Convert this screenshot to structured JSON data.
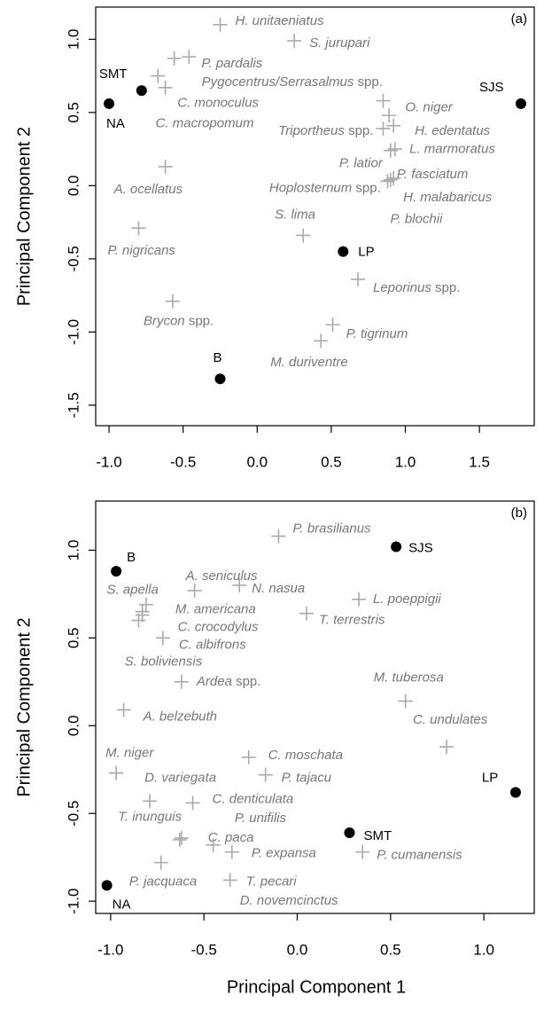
{
  "chart_data": [
    {
      "type": "scatter",
      "panel_label": "(a)",
      "y_label": "Principal Component 2",
      "xlim": [
        -1.09,
        1.87
      ],
      "ylim": [
        -1.64,
        1.22
      ],
      "xticks": [
        {
          "value": -1,
          "label": "-1.0"
        },
        -0.5,
        {
          "value": 0,
          "label": "0.0"
        },
        0.5,
        {
          "value": 1,
          "label": "1.0"
        },
        1.5
      ],
      "yticks": [
        -1.5,
        {
          "value": -1,
          "label": "-1.0"
        },
        -0.5,
        {
          "value": 0,
          "label": "0.0"
        },
        0.5,
        {
          "value": 1,
          "label": "1.0"
        }
      ],
      "series": [
        {
          "color": "#000000",
          "marker": "circle",
          "labels": [
            "SMT",
            "NA",
            "SJS",
            "LP",
            "B"
          ],
          "x": [
            -0.78,
            -1.0,
            1.78,
            0.58,
            -0.25
          ],
          "values": [
            0.65,
            0.56,
            0.56,
            -0.45,
            -1.32
          ]
        },
        {
          "color": "#aaaaaa",
          "marker": "cross",
          "labels": [
            "H. unitaeniatus",
            "S. jurupari",
            "P. pardalis",
            "Pygocentrus/Serrasalmus spp.",
            "C. monoculus",
            "C. macropomum",
            "O. niger",
            "H. edentatus",
            "Triportheus spp.",
            "L. marmoratus",
            "P. latior",
            "P. fasciatum",
            "Hoplosternum spp.",
            "H. malabaricus",
            "P. blochii",
            "A. ocellatus",
            "P. nigricans",
            "S. lima",
            "Leporinus spp.",
            "Brycon spp.",
            "P. tigrinum",
            "M. duriventre"
          ],
          "x": [
            -0.25,
            0.25,
            -0.46,
            -0.56,
            -0.67,
            -0.62,
            0.85,
            0.89,
            0.85,
            0.92,
            0.9,
            0.93,
            0.9,
            0.92,
            0.88,
            -0.62,
            -0.8,
            0.31,
            0.68,
            -0.57,
            0.51,
            0.43
          ],
          "values": [
            1.1,
            0.99,
            0.88,
            0.87,
            0.75,
            0.67,
            0.58,
            0.48,
            0.39,
            0.41,
            0.24,
            0.25,
            0.04,
            0.05,
            0.03,
            0.13,
            -0.29,
            -0.34,
            -0.64,
            -0.79,
            -0.95,
            -1.06
          ]
        }
      ]
    },
    {
      "type": "scatter",
      "panel_label": "(b)",
      "y_label": "Principal Component 2",
      "x_label": "Principal Component 1",
      "xlim": [
        -1.08,
        1.27
      ],
      "ylim": [
        -1.07,
        1.28
      ],
      "xticks": [
        {
          "value": -1,
          "label": "-1.0"
        },
        -0.5,
        {
          "value": 0,
          "label": "0.0"
        },
        0.5,
        {
          "value": 1,
          "label": "1.0"
        }
      ],
      "yticks": [
        {
          "value": -1,
          "label": "-1.0"
        },
        -0.5,
        {
          "value": 0,
          "label": "0.0"
        },
        0.5,
        {
          "value": 1,
          "label": "1.0"
        }
      ],
      "series": [
        {
          "color": "#000000",
          "marker": "circle",
          "labels": [
            "B",
            "SJS",
            "LP",
            "SMT",
            "NA"
          ],
          "x": [
            -0.97,
            0.53,
            1.17,
            0.28,
            -1.02
          ],
          "values": [
            0.88,
            1.02,
            -0.38,
            -0.61,
            -0.91
          ]
        },
        {
          "color": "#aaaaaa",
          "marker": "cross",
          "labels": [
            "P. brasilianus",
            "A. seniculus",
            "S. apella",
            "N. nasua",
            "M. americana",
            "C. crocodylus",
            "C. albifrons",
            "S. boliviensis",
            "Ardea spp.",
            "A. belzebuth",
            "L. poeppigii",
            "T. terrestris",
            "M. tuberosa",
            "C. undulates",
            "M. niger",
            "D. variegata",
            "C. moschata",
            "P. tajacu",
            "C. denticulata",
            "T. inunguis",
            "P. unifilis",
            "C. paca",
            "P. expansa",
            "D. novemcinctus",
            "T. pecari",
            "P. jacquaca",
            "P. cumanensis"
          ],
          "x": [
            -0.1,
            -0.55,
            -0.85,
            -0.31,
            -0.81,
            -0.83,
            -0.72,
            -0.83,
            -0.62,
            -0.93,
            0.33,
            0.05,
            0.58,
            0.8,
            -0.97,
            -0.97,
            -0.26,
            -0.17,
            -0.56,
            -0.79,
            -0.62,
            -0.63,
            -0.35,
            -0.45,
            -0.36,
            -0.73,
            0.35
          ],
          "values": [
            1.08,
            0.77,
            0.6,
            0.8,
            0.69,
            0.65,
            0.5,
            0.63,
            0.25,
            0.09,
            0.72,
            0.64,
            0.14,
            -0.12,
            -0.27,
            -0.27,
            -0.18,
            -0.28,
            -0.44,
            -0.43,
            -0.64,
            -0.65,
            -0.72,
            -0.68,
            -0.88,
            -0.78,
            -0.72
          ]
        }
      ]
    }
  ]
}
